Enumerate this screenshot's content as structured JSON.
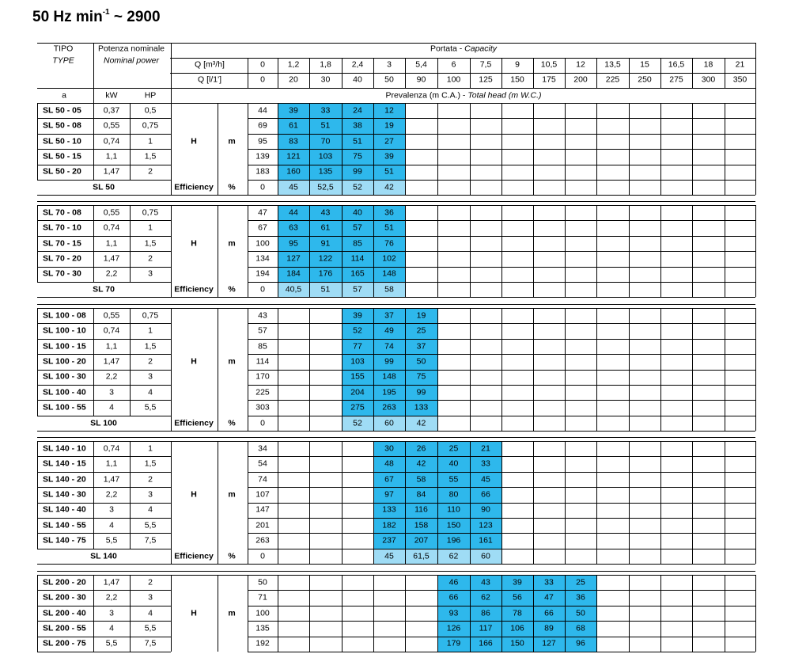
{
  "title": {
    "prefix": "50 Hz min",
    "exp": "-1",
    "suffix": " ~ 2900"
  },
  "header": {
    "tipo": "TIPO",
    "type": "TYPE",
    "potenza": "Potenza nominale",
    "nominal": "Nominal power",
    "portata": "Portata - ",
    "capacity": "Capacity",
    "q_m3h": "Q [m³/h]",
    "q_lmin": "Q [l/1']",
    "col_a": "a",
    "col_kw": "kW",
    "col_hp": "HP",
    "prevalenza": "Prevalenza (m C.A.) - ",
    "total_head": "Total head (m W.C.)"
  },
  "q_m3h_values": [
    "0",
    "1,2",
    "1,8",
    "2,4",
    "3",
    "5,4",
    "6",
    "7,5",
    "9",
    "10,5",
    "12",
    "13,5",
    "15",
    "16,5",
    "18",
    "21"
  ],
  "q_lmin_values": [
    "0",
    "20",
    "30",
    "40",
    "50",
    "90",
    "100",
    "125",
    "150",
    "175",
    "200",
    "225",
    "250",
    "275",
    "300",
    "350"
  ],
  "labels": {
    "h": "H",
    "m": "m",
    "efficiency": "Efficiency",
    "percent": "%"
  },
  "colors": {
    "head_cell": "#2eb8ec",
    "efficiency_cell": "#9fdcf5",
    "lines": "#000000"
  },
  "groups": [
    {
      "name": "SL 50",
      "start": 1,
      "rows": [
        {
          "model": "SL 50 - 05",
          "kw": "0,37",
          "hp": "0,5",
          "head": [
            "44",
            "39",
            "33",
            "24",
            "12"
          ]
        },
        {
          "model": "SL 50 - 08",
          "kw": "0,55",
          "hp": "0,75",
          "head": [
            "69",
            "61",
            "51",
            "38",
            "19"
          ]
        },
        {
          "model": "SL 50 - 10",
          "kw": "0,74",
          "hp": "1",
          "head": [
            "95",
            "83",
            "70",
            "51",
            "27"
          ]
        },
        {
          "model": "SL 50 - 15",
          "kw": "1,1",
          "hp": "1,5",
          "head": [
            "139",
            "121",
            "103",
            "75",
            "39"
          ]
        },
        {
          "model": "SL 50 - 20",
          "kw": "1,47",
          "hp": "2",
          "head": [
            "183",
            "160",
            "135",
            "99",
            "51"
          ]
        }
      ],
      "efficiency": [
        "0",
        "45",
        "52,5",
        "52",
        "42"
      ]
    },
    {
      "name": "SL 70",
      "start": 1,
      "rows": [
        {
          "model": "SL 70 - 08",
          "kw": "0,55",
          "hp": "0,75",
          "head": [
            "47",
            "44",
            "43",
            "40",
            "36"
          ]
        },
        {
          "model": "SL 70 - 10",
          "kw": "0,74",
          "hp": "1",
          "head": [
            "67",
            "63",
            "61",
            "57",
            "51"
          ]
        },
        {
          "model": "SL 70 - 15",
          "kw": "1,1",
          "hp": "1,5",
          "head": [
            "100",
            "95",
            "91",
            "85",
            "76"
          ]
        },
        {
          "model": "SL 70 - 20",
          "kw": "1,47",
          "hp": "2",
          "head": [
            "134",
            "127",
            "122",
            "114",
            "102"
          ]
        },
        {
          "model": "SL 70 - 30",
          "kw": "2,2",
          "hp": "3",
          "head": [
            "194",
            "184",
            "176",
            "165",
            "148"
          ]
        }
      ],
      "efficiency": [
        "0",
        "40,5",
        "51",
        "57",
        "58"
      ]
    },
    {
      "name": "SL 100",
      "start": 3,
      "rows": [
        {
          "model": "SL 100 - 08",
          "kw": "0,55",
          "hp": "0,75",
          "head": [
            "43",
            "39",
            "37",
            "19"
          ]
        },
        {
          "model": "SL 100 - 10",
          "kw": "0,74",
          "hp": "1",
          "head": [
            "57",
            "52",
            "49",
            "25"
          ]
        },
        {
          "model": "SL 100 - 15",
          "kw": "1,1",
          "hp": "1,5",
          "head": [
            "85",
            "77",
            "74",
            "37"
          ]
        },
        {
          "model": "SL 100 - 20",
          "kw": "1,47",
          "hp": "2",
          "head": [
            "114",
            "103",
            "99",
            "50"
          ]
        },
        {
          "model": "SL 100 - 30",
          "kw": "2,2",
          "hp": "3",
          "head": [
            "170",
            "155",
            "148",
            "75"
          ]
        },
        {
          "model": "SL 100 - 40",
          "kw": "3",
          "hp": "4",
          "head": [
            "225",
            "204",
            "195",
            "99"
          ]
        },
        {
          "model": "SL 100 - 55",
          "kw": "4",
          "hp": "5,5",
          "head": [
            "303",
            "275",
            "263",
            "133"
          ]
        }
      ],
      "efficiency": [
        "0",
        "52",
        "60",
        "42"
      ]
    },
    {
      "name": "SL 140",
      "start": 4,
      "rows": [
        {
          "model": "SL 140 - 10",
          "kw": "0,74",
          "hp": "1",
          "head": [
            "34",
            "30",
            "26",
            "25",
            "21"
          ]
        },
        {
          "model": "SL 140 - 15",
          "kw": "1,1",
          "hp": "1,5",
          "head": [
            "54",
            "48",
            "42",
            "40",
            "33"
          ]
        },
        {
          "model": "SL 140 - 20",
          "kw": "1,47",
          "hp": "2",
          "head": [
            "74",
            "67",
            "58",
            "55",
            "45"
          ]
        },
        {
          "model": "SL 140 - 30",
          "kw": "2,2",
          "hp": "3",
          "head": [
            "107",
            "97",
            "84",
            "80",
            "66"
          ]
        },
        {
          "model": "SL 140 - 40",
          "kw": "3",
          "hp": "4",
          "head": [
            "147",
            "133",
            "116",
            "110",
            "90"
          ]
        },
        {
          "model": "SL 140 - 55",
          "kw": "4",
          "hp": "5,5",
          "head": [
            "201",
            "182",
            "158",
            "150",
            "123"
          ]
        },
        {
          "model": "SL 140 - 75",
          "kw": "5,5",
          "hp": "7,5",
          "head": [
            "263",
            "237",
            "207",
            "196",
            "161"
          ]
        }
      ],
      "efficiency": [
        "0",
        "45",
        "61,5",
        "62",
        "60"
      ]
    },
    {
      "name": "SL 200",
      "start": 6,
      "rows": [
        {
          "model": "SL 200 - 20",
          "kw": "1,47",
          "hp": "2",
          "head": [
            "50",
            "46",
            "43",
            "39",
            "33",
            "25"
          ]
        },
        {
          "model": "SL 200 - 30",
          "kw": "2,2",
          "hp": "3",
          "head": [
            "71",
            "66",
            "62",
            "56",
            "47",
            "36"
          ]
        },
        {
          "model": "SL 200 - 40",
          "kw": "3",
          "hp": "4",
          "head": [
            "100",
            "93",
            "86",
            "78",
            "66",
            "50"
          ]
        },
        {
          "model": "SL 200 - 55",
          "kw": "4",
          "hp": "5,5",
          "head": [
            "135",
            "126",
            "117",
            "106",
            "89",
            "68"
          ]
        },
        {
          "model": "SL 200 - 75",
          "kw": "5,5",
          "hp": "7,5",
          "head": [
            "192",
            "179",
            "166",
            "150",
            "127",
            "96"
          ]
        }
      ],
      "efficiency": null
    }
  ]
}
